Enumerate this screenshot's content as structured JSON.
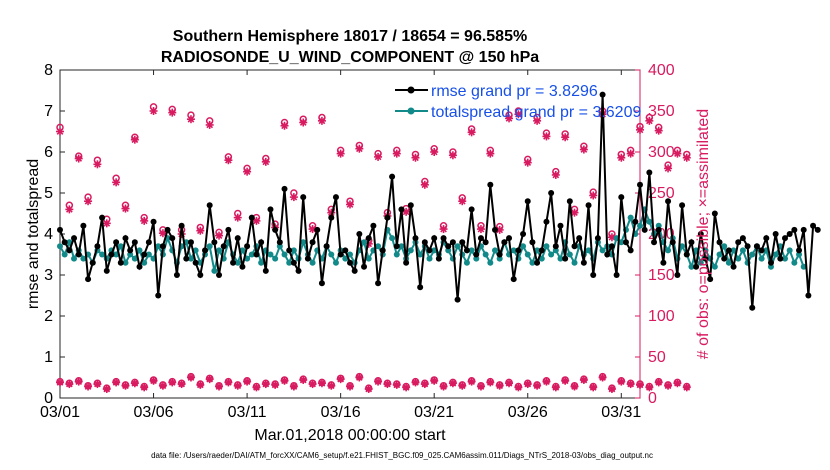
{
  "chart_data": {
    "type": "line",
    "title_line1": "Southern Hemisphere 18017 / 18654 = 96.585%",
    "title_line2": "RADIOSONDE_U_WIND_COMPONENT @ 150 hPa",
    "xlabel": "Mar.01,2018 00:00:00 start",
    "ylabel_left": "rmse and totalspread",
    "ylabel_right": "# of obs: o=possible; ×=assimilated",
    "footnote": "data file: /Users/raeder/DAI/ATM_forcXX/CAM6_setup/f.e21.FHIST_BGC.f09_025.CAM6assim.011/Diags_NTrS_2018-03/obs_diag_output.nc",
    "x_range": [
      1,
      32
    ],
    "x_ticks": [
      1,
      6,
      11,
      16,
      21,
      26,
      31
    ],
    "x_tick_labels": [
      "03/01",
      "03/06",
      "03/11",
      "03/16",
      "03/21",
      "03/26",
      "03/31"
    ],
    "ylim_left": [
      0,
      8
    ],
    "yticks_left": [
      "0",
      "1",
      "2",
      "3",
      "4",
      "5",
      "6",
      "7",
      "8"
    ],
    "ylim_right": [
      0,
      400
    ],
    "yticks_right": [
      "0",
      "50",
      "100",
      "150",
      "200",
      "250",
      "300",
      "350",
      "400"
    ],
    "colors": {
      "rmse": "#000000",
      "spread": "#138a8a",
      "obs": "#d81b60",
      "legend_text": "#1750e8",
      "right_axis": "#d81b60"
    },
    "series": [
      {
        "name": "rmse grand pr = 3.8296",
        "start_day": 1,
        "step_days": 0.25,
        "values": [
          4.1,
          3.8,
          3.6,
          3.9,
          3.5,
          4.2,
          2.9,
          3.3,
          3.7,
          4.4,
          3.1,
          3.5,
          3.8,
          3.3,
          3.9,
          3.6,
          3.8,
          3.2,
          3.5,
          3.8,
          4.3,
          2.5,
          3.7,
          4.1,
          3.9,
          3.0,
          4.2,
          3.4,
          3.8,
          3.3,
          3.0,
          3.6,
          4.7,
          3.8,
          3.0,
          3.7,
          4.1,
          3.3,
          3.9,
          3.2,
          3.7,
          4.4,
          3.5,
          3.8,
          3.1,
          4.6,
          4.1,
          3.8,
          5.1,
          3.6,
          3.3,
          3.1,
          4.9,
          3.4,
          3.8,
          4.1,
          2.8,
          3.7,
          4.4,
          4.9,
          3.5,
          3.6,
          3.3,
          3.1,
          4.0,
          3.2,
          3.9,
          4.2,
          2.8,
          3.6,
          4.4,
          5.4,
          3.7,
          4.6,
          3.3,
          4.7,
          3.9,
          2.7,
          3.8,
          3.6,
          3.9,
          3.4,
          3.9,
          3.7,
          3.8,
          2.4,
          3.8,
          3.6,
          4.6,
          3.5,
          3.9,
          3.8,
          5.2,
          4.1,
          3.5,
          3.8,
          3.9,
          2.9,
          3.6,
          4.0,
          4.8,
          3.8,
          3.3,
          3.6,
          4.3,
          5.0,
          3.7,
          4.2,
          3.4,
          4.8,
          3.7,
          3.9,
          3.3,
          4.7,
          3.0,
          3.9,
          7.4,
          3.5,
          3.7,
          3.0,
          4.9,
          3.8,
          3.6,
          4.3,
          5.2,
          4.1,
          5.5,
          3.8,
          4.1,
          3.3,
          4.8,
          3.8,
          3.0,
          4.7,
          3.5,
          3.8,
          3.2,
          4.0,
          3.4,
          2.9,
          4.5,
          3.8,
          3.4,
          3.6,
          3.2,
          3.8,
          3.9,
          3.7,
          2.2,
          3.7,
          3.6,
          3.9,
          3.3,
          4.0,
          3.4,
          3.9,
          4.0,
          4.1,
          3.6,
          4.1,
          2.5,
          4.2,
          4.1
        ],
        "color": "#000000",
        "marker": "filled-circle"
      },
      {
        "name": "totalspread grand pr = 3.6209",
        "start_day": 1,
        "step_days": 0.25,
        "values": [
          3.7,
          3.5,
          3.8,
          3.4,
          3.6,
          3.4,
          3.5,
          3.3,
          3.6,
          3.5,
          3.4,
          3.6,
          3.5,
          3.7,
          3.3,
          3.5,
          3.4,
          3.6,
          3.3,
          3.5,
          3.4,
          3.7,
          3.5,
          3.9,
          3.6,
          3.3,
          3.7,
          3.8,
          3.4,
          3.6,
          3.3,
          3.5,
          3.7,
          3.1,
          3.6,
          3.4,
          3.8,
          3.5,
          3.3,
          3.6,
          3.4,
          3.5,
          3.7,
          3.3,
          3.6,
          3.5,
          3.4,
          3.7,
          3.5,
          3.3,
          3.6,
          3.4,
          3.8,
          3.5,
          3.3,
          3.6,
          3.4,
          3.7,
          3.5,
          3.3,
          3.6,
          3.4,
          3.5,
          3.3,
          3.6,
          3.8,
          3.4,
          3.6,
          3.7,
          3.5,
          4.1,
          3.9,
          3.5,
          3.7,
          3.4,
          3.6,
          3.8,
          3.5,
          3.7,
          3.4,
          3.6,
          3.5,
          3.8,
          3.6,
          3.4,
          3.7,
          3.5,
          3.3,
          3.6,
          3.4,
          3.7,
          3.5,
          3.3,
          3.6,
          3.4,
          3.8,
          3.5,
          3.6,
          3.4,
          3.7,
          3.5,
          3.3,
          3.6,
          3.4,
          3.7,
          3.5,
          3.6,
          3.4,
          3.8,
          3.5,
          3.3,
          3.7,
          3.5,
          3.6,
          3.4,
          3.8,
          3.6,
          3.7,
          3.5,
          3.9,
          3.8,
          4.1,
          4.4,
          4.0,
          4.2,
          4.6,
          4.3,
          4.0,
          4.2,
          3.8,
          3.6,
          3.9,
          3.4,
          3.7,
          3.5,
          3.2,
          3.6,
          3.3,
          3.6,
          3.4,
          3.2,
          3.5,
          3.7,
          3.3,
          3.6,
          3.4,
          3.6,
          3.3,
          3.5,
          3.7,
          3.4,
          3.6,
          3.2,
          3.5,
          3.7,
          3.4,
          3.6,
          3.3,
          3.5,
          3.2
        ],
        "color": "#138a8a",
        "marker": "filled-circle"
      },
      {
        "name": "obs possible",
        "start_day": 1,
        "step_days": 0.5,
        "values": [
          330,
          235,
          295,
          245,
          290,
          218,
          268,
          235,
          318,
          220,
          355,
          205,
          352,
          205,
          345,
          208,
          338,
          202,
          294,
          225,
          280,
          220,
          292,
          212,
          336,
          250,
          340,
          210,
          342,
          230,
          302,
          240,
          308,
          192,
          298,
          226,
          302,
          231,
          297,
          264,
          304,
          210,
          300,
          244,
          328,
          210,
          302,
          209,
          345,
          350,
          291,
          342,
          323,
          276,
          322,
          230,
          307,
          251,
          350,
          200,
          297,
          302,
          331,
          342,
          330,
          284,
          302,
          297
        ],
        "color": "#d81b60",
        "marker": "open-circle"
      },
      {
        "name": "obs assimilated",
        "start_day": 1,
        "step_days": 0.5,
        "values": [
          325,
          230,
          292,
          240,
          285,
          213,
          263,
          231,
          315,
          216,
          350,
          201,
          348,
          200,
          340,
          204,
          333,
          198,
          290,
          220,
          276,
          216,
          288,
          208,
          332,
          245,
          336,
          206,
          338,
          226,
          298,
          236,
          304,
          188,
          294,
          222,
          298,
          227,
          293,
          260,
          300,
          206,
          296,
          240,
          324,
          206,
          298,
          205,
          341,
          346,
          287,
          338,
          319,
          272,
          318,
          226,
          303,
          247,
          346,
          196,
          293,
          298,
          327,
          338,
          326,
          280,
          298,
          293
        ],
        "color": "#d81b60",
        "marker": "asterisk"
      },
      {
        "name": "obs possible (low)",
        "start_day": 1,
        "step_days": 0.5,
        "values": [
          20,
          18,
          21,
          15,
          18,
          12,
          20,
          16,
          19,
          14,
          22,
          16,
          20,
          18,
          26,
          17,
          24,
          15,
          20,
          16,
          21,
          14,
          18,
          17,
          22,
          15,
          23,
          18,
          19,
          16,
          24,
          15,
          26,
          12,
          21,
          18,
          17,
          14,
          20,
          18,
          22,
          15,
          19,
          16,
          21,
          15,
          20,
          16,
          19,
          14,
          18,
          16,
          21,
          14,
          22,
          15,
          23,
          14,
          26,
          12,
          21,
          18,
          17,
          14,
          20,
          16,
          19,
          14
        ],
        "color": "#d81b60",
        "marker": "open-circle"
      },
      {
        "name": "obs assimilated (low)",
        "start_day": 1,
        "step_days": 0.5,
        "values": [
          19,
          17,
          20,
          14,
          17,
          11,
          19,
          15,
          18,
          13,
          21,
          15,
          19,
          17,
          25,
          16,
          23,
          14,
          19,
          15,
          20,
          13,
          17,
          16,
          21,
          14,
          22,
          17,
          18,
          15,
          23,
          14,
          25,
          11,
          20,
          17,
          16,
          13,
          19,
          17,
          21,
          14,
          18,
          15,
          20,
          14,
          19,
          15,
          18,
          13,
          17,
          15,
          20,
          13,
          21,
          14,
          22,
          13,
          25,
          11,
          20,
          17,
          16,
          13,
          19,
          15,
          18,
          13
        ],
        "color": "#d81b60",
        "marker": "asterisk"
      }
    ]
  }
}
